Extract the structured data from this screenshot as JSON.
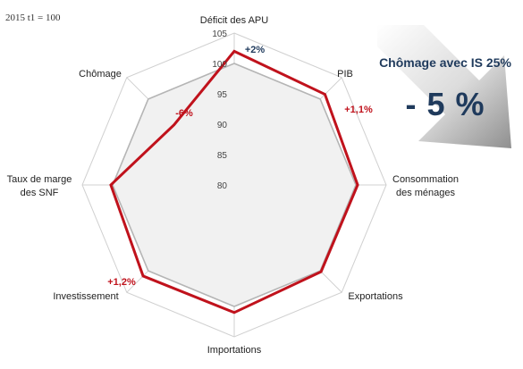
{
  "corner_label": "2015 t1 = 100",
  "callout": {
    "title": "Chômage avec IS 25%",
    "value": "- 5 %"
  },
  "colors": {
    "scenario": "#c0121c",
    "baseline": "#b5b5b5",
    "baseline_fill": "#f1f1f1",
    "grid": "#d0d0d0",
    "callout_text": "#1f3a5c"
  },
  "chart_data": {
    "type": "radar",
    "title": "",
    "axes": [
      {
        "label_lines": [
          "Déficit des APU"
        ]
      },
      {
        "label_lines": [
          "PIB"
        ]
      },
      {
        "label_lines": [
          "Consommation",
          "des ménages"
        ]
      },
      {
        "label_lines": [
          "Exportations"
        ]
      },
      {
        "label_lines": [
          "Importations"
        ]
      },
      {
        "label_lines": [
          "Investissement"
        ]
      },
      {
        "label_lines": [
          "Taux de marge",
          "des SNF"
        ]
      },
      {
        "label_lines": [
          "Chômage"
        ]
      }
    ],
    "rlim": [
      80,
      105
    ],
    "ticks": [
      80,
      85,
      90,
      95,
      100,
      105
    ],
    "grid": true,
    "series": [
      {
        "role": "baseline",
        "values": [
          100,
          100,
          100,
          100,
          100,
          100,
          100,
          100
        ]
      },
      {
        "role": "scenario",
        "values": [
          102,
          101.1,
          100.3,
          100.2,
          101,
          101.2,
          100.3,
          94
        ]
      }
    ],
    "annotations": [
      {
        "axis": 0,
        "text": "+2%",
        "color": "#1f3a5c"
      },
      {
        "axis": 1,
        "text": "+1,1%",
        "color": "#c0121c"
      },
      {
        "axis": 5,
        "text": "+1,2%",
        "color": "#c0121c"
      },
      {
        "axis": 7,
        "text": "-6%",
        "color": "#c0121c"
      }
    ]
  }
}
